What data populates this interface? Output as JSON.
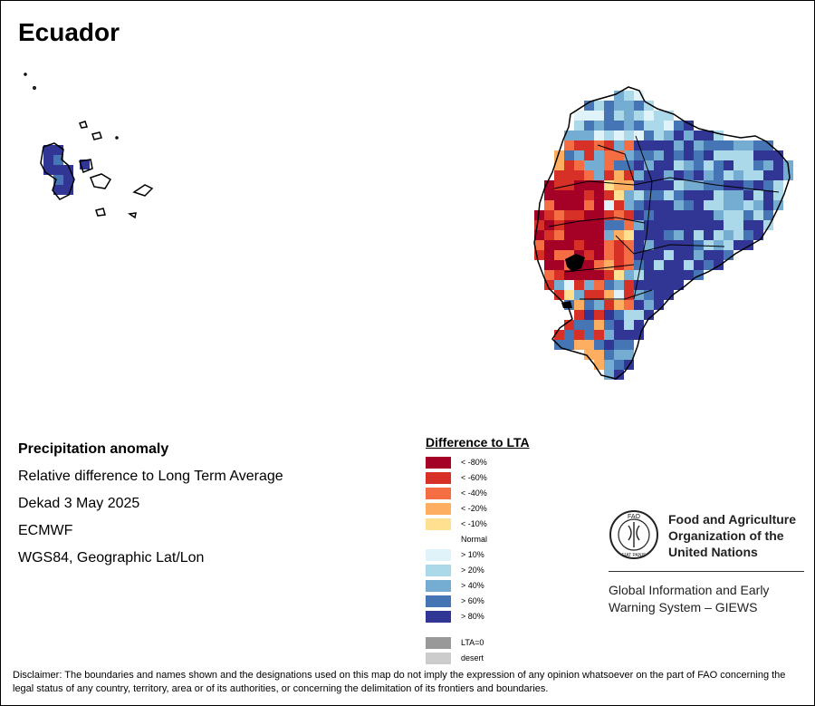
{
  "map": {
    "title": "Ecuador",
    "info_lines": [
      "Precipitation anomaly",
      "Relative difference to Long Term Average",
      "Dekad 3 May 2025",
      "ECMWF",
      "WGS84, Geographic Lat/Lon"
    ],
    "legend": {
      "title": "Difference to LTA",
      "items": [
        {
          "label": "< -80%",
          "color": "#a50026"
        },
        {
          "label": "< -60%",
          "color": "#d73027"
        },
        {
          "label": "< -40%",
          "color": "#f46d43"
        },
        {
          "label": "< -20%",
          "color": "#fdae61"
        },
        {
          "label": "< -10%",
          "color": "#fee090"
        },
        {
          "label": "Normal",
          "color": "#ffffff"
        },
        {
          "label": "> 10%",
          "color": "#e0f3f8"
        },
        {
          "label": "> 20%",
          "color": "#abd9e9"
        },
        {
          "label": "> 40%",
          "color": "#74add1"
        },
        {
          "label": "> 60%",
          "color": "#4575b4"
        },
        {
          "label": "> 80%",
          "color": "#313695"
        }
      ],
      "extra_items": [
        {
          "label": "LTA=0",
          "color": "#999999"
        },
        {
          "label": "desert",
          "color": "#cccccc"
        }
      ]
    },
    "organization": {
      "name_lines": [
        "Food and Agriculture",
        "Organization of the",
        "United Nations"
      ],
      "logo_text": "FAO",
      "logo_motto": "FIAT PANIS",
      "system_lines": [
        "Global Information and Early",
        "Warning System – GIEWS"
      ]
    },
    "disclaimer": "Disclaimer: The boundaries and names shown and the designations used on this map do not imply the expression of any opinion whatsoever on the part of FAO concerning the legal status of any country, territory, area or of its authorities, or concerning the delimitation of its frontiers and boundaries.",
    "colors": {
      "border": "#000000",
      "text": "#000000",
      "dry_extreme": "#a50026",
      "wet_extreme": "#313695"
    }
  }
}
